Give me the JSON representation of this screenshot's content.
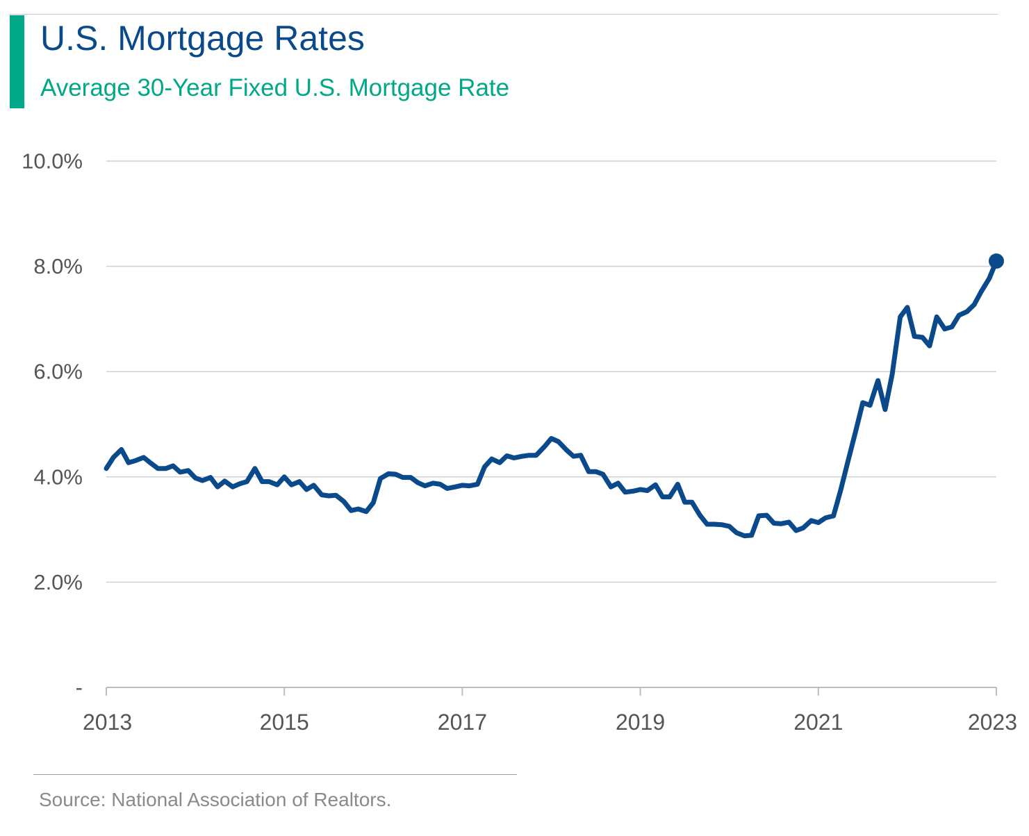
{
  "header": {
    "title": "U.S. Mortgage Rates",
    "subtitle": "Average 30-Year Fixed U.S. Mortgage Rate"
  },
  "footer": {
    "source": "Source: National Association of Realtors."
  },
  "colors": {
    "accent": "#00a887",
    "title": "#0b4a8a",
    "line": "#0b4a8a",
    "grid": "#d0d0d0",
    "axis_text": "#555555"
  },
  "chart_data": {
    "type": "line",
    "title": "U.S. Mortgage Rates",
    "subtitle": "Average 30-Year Fixed U.S. Mortgage Rate",
    "xlabel": "",
    "ylabel": "",
    "xlim": [
      2013,
      2023
    ],
    "ylim": [
      0,
      10
    ],
    "x_ticks": [
      2013,
      2015,
      2017,
      2019,
      2021,
      2023
    ],
    "x_tick_labels": [
      "2013",
      "2015",
      "2017",
      "2019",
      "2021",
      "2023"
    ],
    "y_ticks": [
      0,
      2,
      4,
      6,
      8,
      10
    ],
    "y_tick_labels": [
      "-",
      "2.0%",
      "4.0%",
      "6.0%",
      "8.0%",
      "10.0%"
    ],
    "grid": "horizontal",
    "legend": "none",
    "end_marker": true,
    "series": [
      {
        "color": "#0b4a8a",
        "x": [
          2013.0,
          2013.08,
          2013.17,
          2013.25,
          2013.33,
          2013.42,
          2013.5,
          2013.58,
          2013.67,
          2013.75,
          2013.83,
          2013.92,
          2014.0,
          2014.08,
          2014.17,
          2014.25,
          2014.33,
          2014.42,
          2014.5,
          2014.58,
          2014.67,
          2014.75,
          2014.83,
          2014.92,
          2015.0,
          2015.08,
          2015.17,
          2015.25,
          2015.33,
          2015.42,
          2015.5,
          2015.58,
          2015.67,
          2015.75,
          2015.83,
          2015.92,
          2016.0,
          2016.08,
          2016.17,
          2016.25,
          2016.33,
          2016.42,
          2016.5,
          2016.58,
          2016.67,
          2016.75,
          2016.83,
          2016.92,
          2017.0,
          2017.08,
          2017.17,
          2017.25,
          2017.33,
          2017.42,
          2017.5,
          2017.58,
          2017.67,
          2017.75,
          2017.83,
          2017.92,
          2018.0,
          2018.08,
          2018.17,
          2018.25,
          2018.33,
          2018.42,
          2018.5,
          2018.58,
          2018.67,
          2018.75,
          2018.83,
          2018.92,
          2019.0,
          2019.08,
          2019.17,
          2019.25,
          2019.33,
          2019.42,
          2019.5,
          2019.58,
          2019.67,
          2019.75,
          2019.83,
          2019.92,
          2020.0,
          2020.08,
          2020.17,
          2020.25,
          2020.33,
          2020.42,
          2020.5,
          2020.58,
          2020.67,
          2020.75,
          2020.83,
          2020.92,
          2021.0,
          2021.08,
          2021.17,
          2021.25,
          2021.33,
          2021.42,
          2021.5,
          2021.58,
          2021.67,
          2021.75,
          2021.83,
          2021.92,
          2022.0,
          2022.08,
          2022.17,
          2022.25,
          2022.33,
          2022.42,
          2022.5,
          2022.58,
          2022.67,
          2022.75,
          2022.83,
          2022.92,
          2023.0
        ],
        "values": [
          4.16,
          4.37,
          4.52,
          4.27,
          4.31,
          4.37,
          4.26,
          4.16,
          4.16,
          4.21,
          4.09,
          4.12,
          3.98,
          3.93,
          3.99,
          3.81,
          3.92,
          3.81,
          3.87,
          3.91,
          4.16,
          3.91,
          3.91,
          3.85,
          4.0,
          3.85,
          3.91,
          3.76,
          3.84,
          3.66,
          3.64,
          3.65,
          3.53,
          3.36,
          3.39,
          3.34,
          3.51,
          3.97,
          4.06,
          4.05,
          3.99,
          3.99,
          3.89,
          3.83,
          3.88,
          3.86,
          3.78,
          3.81,
          3.84,
          3.83,
          3.86,
          4.19,
          4.34,
          4.27,
          4.4,
          4.36,
          4.39,
          4.41,
          4.41,
          4.57,
          4.73,
          4.67,
          4.51,
          4.39,
          4.41,
          4.1,
          4.1,
          4.05,
          3.81,
          3.88,
          3.71,
          3.73,
          3.76,
          3.74,
          3.85,
          3.62,
          3.62,
          3.86,
          3.52,
          3.52,
          3.27,
          3.1,
          3.1,
          3.09,
          3.06,
          2.94,
          2.88,
          2.89,
          3.26,
          3.27,
          3.12,
          3.11,
          3.14,
          2.98,
          3.03,
          3.17,
          3.13,
          3.22,
          3.26,
          3.74,
          4.28,
          4.87,
          5.41,
          5.36,
          5.83,
          5.28,
          5.95,
          7.04,
          7.22,
          6.67,
          6.65,
          6.49,
          7.04,
          6.81,
          6.85,
          7.07,
          7.14,
          7.27,
          7.52,
          7.77,
          8.1
        ]
      }
    ]
  }
}
